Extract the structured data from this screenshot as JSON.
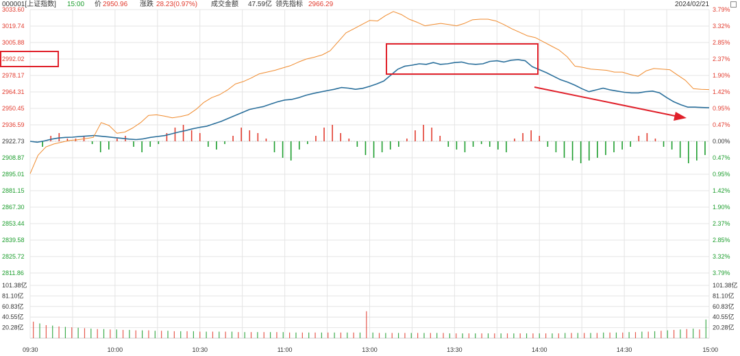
{
  "header": {
    "code": "000001[上证指数]",
    "time": "15:00",
    "price_label": "价",
    "price": "2950.96",
    "change_label": "涨跌",
    "change": "28.23(0.97%)",
    "turnover_label": "成交金额",
    "turnover": "47.59亿",
    "leading_label": "领先指标",
    "leading": "2966.29",
    "date": "2024/02/21",
    "corner_icon": "fullscreen-icon"
  },
  "colors": {
    "up": "#e23b2e",
    "down": "#1b9d2c",
    "price_line": "#2a6f9b",
    "leading_line": "#f08a2c",
    "grid": "#e4e4e4",
    "highlight": "#e0202a"
  },
  "chart_data": {
    "type": "line",
    "title": "000001[上证指数]",
    "prev_close": 2922.73,
    "ylim": [
      2811.86,
      3033.6
    ],
    "price_ticks_left": [
      "3033.60",
      "3019.74",
      "3005.88",
      "2992.02",
      "2978.17",
      "2964.31",
      "2950.45",
      "2936.59",
      "2922.73",
      "2908.87",
      "2895.01",
      "2881.15",
      "2867.30",
      "2853.44",
      "2839.58",
      "2825.72",
      "2811.86"
    ],
    "pct_ticks_right": [
      "3.79%",
      "3.32%",
      "2.85%",
      "2.37%",
      "1.90%",
      "1.42%",
      "0.95%",
      "0.47%",
      "0.00%",
      "0.47%",
      "0.95%",
      "1.42%",
      "1.90%",
      "2.37%",
      "2.85%",
      "3.32%",
      "3.79%"
    ],
    "volume_ticks": [
      "101.38亿",
      "81.10亿",
      "60.83亿",
      "40.55亿",
      "20.28亿"
    ],
    "volume_ylim": [
      0,
      121.66
    ],
    "x_ticks": [
      "09:30",
      "10:00",
      "10:30",
      "11:00",
      "13:00",
      "13:30",
      "14:00",
      "14:30",
      "15:00"
    ],
    "highlighted_label": "2992.02",
    "series": [
      {
        "values": [
          2922.73,
          2922.0,
          2923.0,
          2924.5,
          2925.5,
          2926.0,
          2926.2,
          2926.8,
          2927.2,
          2927.6,
          2927.0,
          2926.4,
          2925.8,
          2925.2,
          2924.6,
          2924.2,
          2924.8,
          2926.0,
          2926.8,
          2927.5,
          2929.0,
          2930.5,
          2931.8,
          2933.3,
          2934.5,
          2935.5,
          2937.5,
          2939.5,
          2942.0,
          2944.5,
          2947.0,
          2949.5,
          2950.8,
          2952.0,
          2954.0,
          2956.0,
          2957.5,
          2958.0,
          2959.5,
          2961.5,
          2963.0,
          2964.2,
          2965.4,
          2966.5,
          2968.0,
          2967.5,
          2966.5,
          2967.3,
          2969.0,
          2971.0,
          2973.5,
          2978.5,
          2983.5,
          2986.0,
          2986.8,
          2988.0,
          2987.5,
          2989.0,
          2987.5,
          2988.0,
          2989.0,
          2989.5,
          2988.0,
          2987.5,
          2988.0,
          2990.0,
          2990.5,
          2989.5,
          2991.0,
          2991.5,
          2990.5,
          2985.5,
          2983.0,
          2980.5,
          2977.5,
          2974.5,
          2972.5,
          2970.0,
          2967.0,
          2964.5,
          2966.0,
          2967.5,
          2966.0,
          2965.0,
          2964.0,
          2963.5,
          2963.5,
          2964.5,
          2965.0,
          2963.5,
          2959.5,
          2956.0,
          2953.5,
          2951.5,
          2951.5,
          2951.2,
          2950.96
        ]
      },
      {
        "values": [
          2895.5,
          2911.0,
          2918.0,
          2920.5,
          2922.0,
          2923.5,
          2924.0,
          2925.0,
          2926.0,
          2938.5,
          2936.0,
          2929.5,
          2930.5,
          2934.0,
          2938.5,
          2944.5,
          2945.0,
          2944.0,
          2942.5,
          2943.5,
          2945.0,
          2949.5,
          2955.5,
          2959.5,
          2962.0,
          2966.0,
          2971.0,
          2973.0,
          2976.0,
          2979.5,
          2981.0,
          2982.5,
          2984.5,
          2986.5,
          2989.5,
          2992.0,
          2993.5,
          2995.5,
          2999.0,
          3006.5,
          3014.0,
          3017.5,
          3021.0,
          3024.5,
          3024.0,
          3028.5,
          3032.0,
          3029.5,
          3025.5,
          3023.0,
          3020.0,
          3021.0,
          3022.0,
          3021.0,
          3020.0,
          3022.0,
          3025.0,
          3025.5,
          3025.5,
          3024.0,
          3021.0,
          3017.5,
          3014.5,
          3011.5,
          3010.0,
          3006.5,
          3003.0,
          2999.5,
          2994.0,
          2986.0,
          2985.0,
          2983.5,
          2983.0,
          2982.5,
          2981.0,
          2981.0,
          2979.0,
          2977.5,
          2982.0,
          2984.0,
          2983.5,
          2983.0,
          2978.5,
          2974.0,
          2967.0,
          2966.5,
          2966.29
        ]
      }
    ],
    "breadth": [
      0,
      -2,
      2,
      3,
      1,
      1,
      2,
      -1,
      -4,
      -3,
      1,
      2,
      -2,
      -4,
      -2,
      -1,
      3,
      5,
      6,
      4,
      3,
      -2,
      -3,
      -1,
      2,
      5,
      4,
      3,
      1,
      -4,
      -6,
      -7,
      -3,
      -1,
      2,
      5,
      6,
      3,
      1,
      -2,
      -5,
      -6,
      -4,
      -3,
      -2,
      1,
      4,
      6,
      5,
      2,
      -2,
      -3,
      -4,
      -2,
      -1,
      -2,
      -3,
      -4,
      1,
      3,
      4,
      2,
      -2,
      -4,
      -6,
      -7,
      -8,
      -7,
      -6,
      -5,
      -4,
      -3,
      -2,
      2,
      3,
      1,
      -2,
      -3,
      -6,
      -8,
      -7,
      -5
    ],
    "volume": [
      38,
      34,
      30,
      29,
      27,
      26,
      25,
      24,
      23,
      22,
      21,
      21,
      20,
      20,
      19,
      19,
      18,
      18,
      18,
      17,
      17,
      17,
      16,
      16,
      16,
      16,
      15,
      15,
      15,
      15,
      15,
      15,
      14,
      14,
      14,
      14,
      14,
      14,
      14,
      14,
      13,
      13,
      13,
      13,
      13,
      13,
      13,
      13,
      13,
      13,
      13,
      13,
      62,
      13,
      12,
      12,
      12,
      12,
      12,
      12,
      12,
      12,
      12,
      12,
      12,
      11,
      11,
      11,
      11,
      11,
      11,
      11,
      11,
      11,
      11,
      11,
      11,
      11,
      11,
      11,
      11,
      11,
      11,
      12,
      12,
      12,
      12,
      12,
      12,
      13,
      13,
      13,
      13,
      14,
      14,
      15,
      15,
      16,
      17,
      18,
      19,
      20,
      21,
      22,
      20,
      43
    ]
  }
}
